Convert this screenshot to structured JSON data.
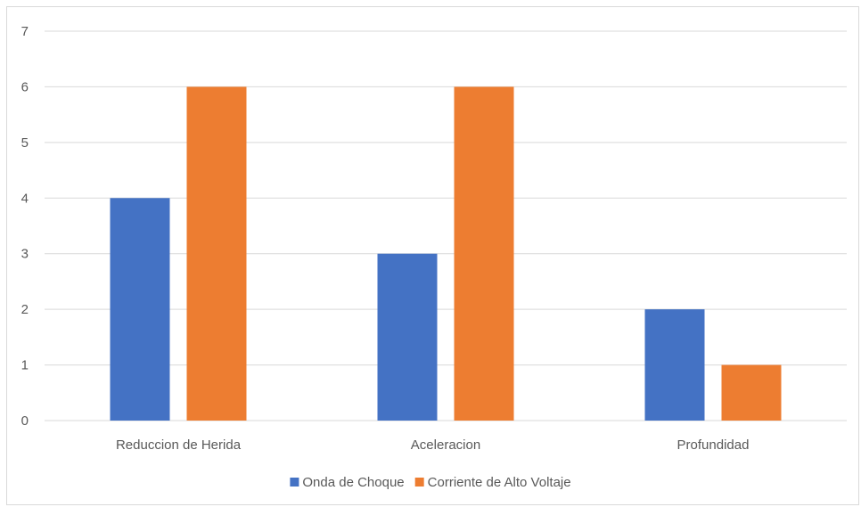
{
  "chart_data": {
    "type": "bar",
    "categories": [
      "Reduccion de Herida",
      "Aceleracion",
      "Profundidad"
    ],
    "series": [
      {
        "name": "Onda de Choque",
        "values": [
          4,
          3,
          2
        ],
        "color": "#4472c4"
      },
      {
        "name": "Corriente de Alto Voltaje",
        "values": [
          6,
          6,
          1
        ],
        "color": "#ed7d31"
      }
    ],
    "ylim": [
      0,
      7
    ],
    "yticks": [
      0,
      1,
      2,
      3,
      4,
      5,
      6,
      7
    ],
    "grid": true,
    "legend": "bottom",
    "gridline_color": "#d9d9d9"
  }
}
